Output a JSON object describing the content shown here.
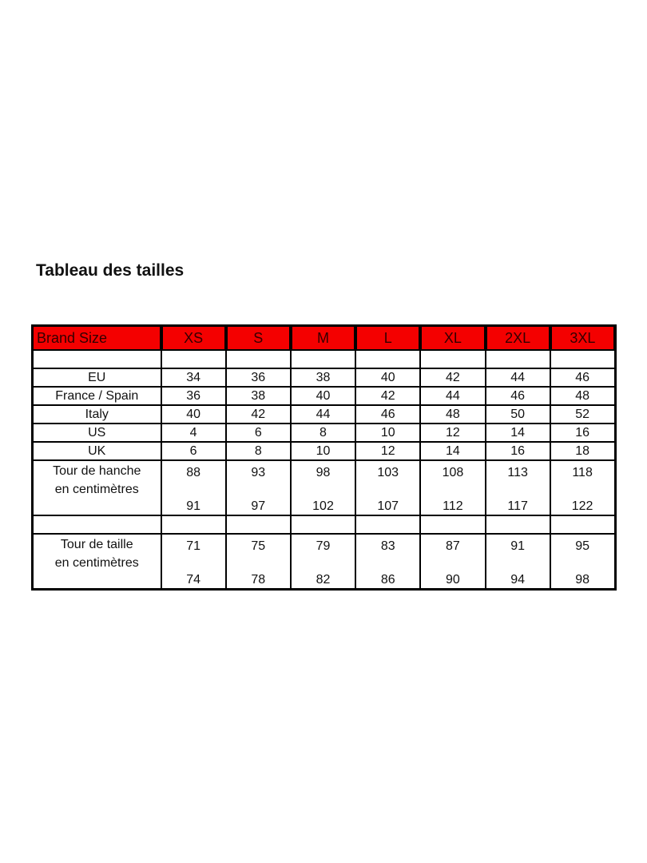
{
  "title": "Tableau des tailles",
  "colors": {
    "header_bg": "#f40000",
    "border": "#000000"
  },
  "table": {
    "header": [
      "Brand Size",
      "XS",
      "S",
      "M",
      "L",
      "XL",
      "2XL",
      "3XL"
    ],
    "rows": [
      {
        "label": "EU",
        "values": [
          "34",
          "36",
          "38",
          "40",
          "42",
          "44",
          "46"
        ]
      },
      {
        "label": "France / Spain",
        "values": [
          "36",
          "38",
          "40",
          "42",
          "44",
          "46",
          "48"
        ]
      },
      {
        "label": "Italy",
        "values": [
          "40",
          "42",
          "44",
          "46",
          "48",
          "50",
          "52"
        ]
      },
      {
        "label": "US",
        "values": [
          "4",
          "6",
          "8",
          "10",
          "12",
          "14",
          "16"
        ]
      },
      {
        "label": "UK",
        "values": [
          "6",
          "8",
          "10",
          "12",
          "14",
          "16",
          "18"
        ]
      }
    ],
    "hip": {
      "label_line1": "Tour de hanche",
      "label_line2": "en centimètres",
      "min": [
        "88",
        "93",
        "98",
        "103",
        "108",
        "113",
        "118"
      ],
      "max": [
        "91",
        "97",
        "102",
        "107",
        "112",
        "117",
        "122"
      ]
    },
    "waist": {
      "label_line1": "Tour de taille",
      "label_line2": "en centimètres",
      "min": [
        "71",
        "75",
        "79",
        "83",
        "87",
        "91",
        "95"
      ],
      "max": [
        "74",
        "78",
        "82",
        "86",
        "90",
        "94",
        "98"
      ]
    }
  }
}
